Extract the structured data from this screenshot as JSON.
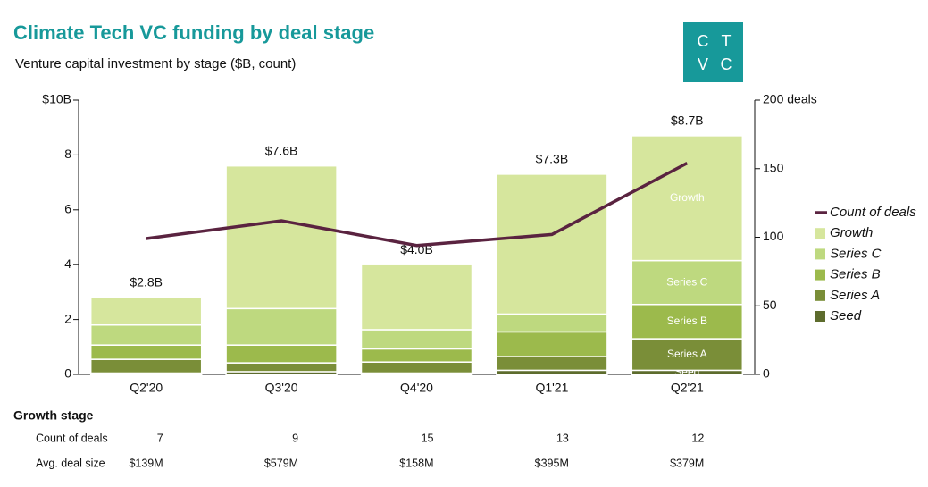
{
  "chart_data": {
    "type": "bar",
    "title": "Climate Tech VC funding by deal stage",
    "subtitle": "Venture capital investment by stage ($B, count)",
    "logo": [
      "C",
      "T",
      "V",
      "C"
    ],
    "categories": [
      "Q2'20",
      "Q3'20",
      "Q4'20",
      "Q1'21",
      "Q2'21"
    ],
    "series": [
      {
        "name": "Seed",
        "color": "#5d6c2d",
        "values": [
          0.05,
          0.1,
          0.05,
          0.15,
          0.15
        ]
      },
      {
        "name": "Series A",
        "color": "#7a8e38",
        "values": [
          0.5,
          0.32,
          0.4,
          0.5,
          1.15
        ]
      },
      {
        "name": "Series B",
        "color": "#9cba4c",
        "values": [
          0.52,
          0.65,
          0.48,
          0.9,
          1.25
        ]
      },
      {
        "name": "Series C",
        "color": "#bed97f",
        "values": [
          0.73,
          1.33,
          0.7,
          0.65,
          1.6
        ]
      },
      {
        "name": "Growth",
        "color": "#d6e69d",
        "values": [
          1.0,
          5.2,
          2.37,
          5.1,
          4.55
        ]
      },
      {
        "name": "Count of deals",
        "type": "line",
        "axis": "y2",
        "color": "#5a2340",
        "values": [
          99,
          112,
          94,
          102,
          154
        ]
      }
    ],
    "totals": {
      "values": [
        2.8,
        7.6,
        4.0,
        7.3,
        8.7
      ],
      "value_labels": [
        "$2.8B",
        "$7.6B",
        "$4.0B",
        "$7.3B",
        "$8.7B"
      ]
    },
    "ylim": [
      0,
      10
    ],
    "yticks": [
      0,
      2,
      4,
      6,
      8,
      {
        "value": 10,
        "label": "$10B"
      }
    ],
    "y2lim": [
      0,
      200
    ],
    "y2ticks": [
      0,
      50,
      100,
      150,
      {
        "value": 200,
        "label": "200 deals"
      }
    ],
    "legend": "right",
    "table": {
      "title": "Growth stage",
      "rows": [
        {
          "label": "Count of deals",
          "values": [
            7,
            9,
            15,
            13,
            12
          ]
        },
        {
          "label": "Avg. deal size",
          "values": [
            "$139M",
            "$579M",
            "$158M",
            "$395M",
            "$379M"
          ]
        }
      ]
    }
  }
}
